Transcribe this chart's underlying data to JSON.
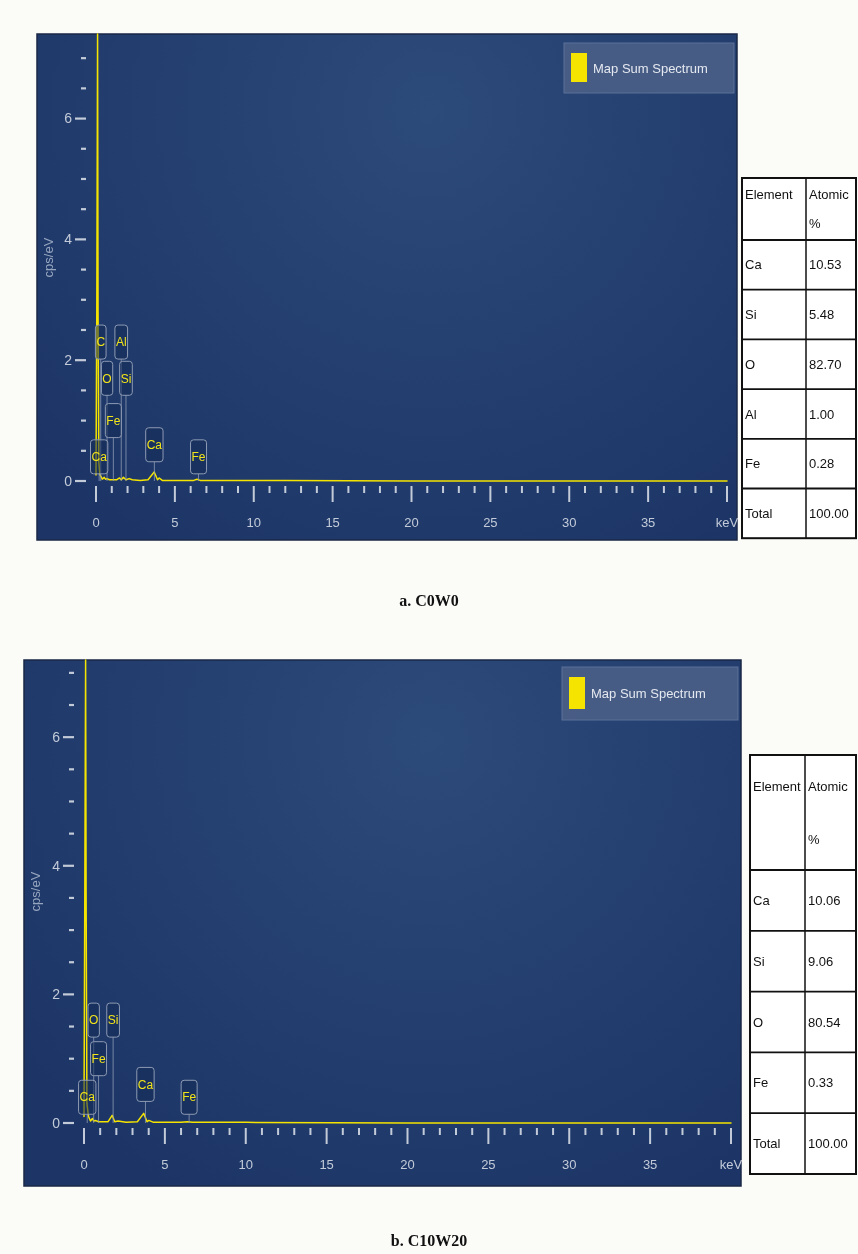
{
  "chart_data": [
    {
      "type": "line",
      "title": "a. C0W0",
      "ylabel": "cps/eV",
      "xlim": [
        0,
        40
      ],
      "ylim": [
        0,
        7.4
      ],
      "xticks": [
        0,
        {
          "value": 1,
          "label": null
        },
        {
          "value": 2,
          "label": null
        },
        {
          "value": 3,
          "label": null
        },
        {
          "value": 4,
          "label": null
        },
        5,
        {
          "value": 6,
          "label": null
        },
        {
          "value": 7,
          "label": null
        },
        {
          "value": 8,
          "label": null
        },
        {
          "value": 9,
          "label": null
        },
        10,
        {
          "value": 11,
          "label": null
        },
        {
          "value": 12,
          "label": null
        },
        {
          "value": 13,
          "label": null
        },
        {
          "value": 14,
          "label": null
        },
        15,
        {
          "value": 16,
          "label": null
        },
        {
          "value": 17,
          "label": null
        },
        {
          "value": 18,
          "label": null
        },
        {
          "value": 19,
          "label": null
        },
        20,
        {
          "value": 21,
          "label": null
        },
        {
          "value": 22,
          "label": null
        },
        {
          "value": 23,
          "label": null
        },
        {
          "value": 24,
          "label": null
        },
        25,
        {
          "value": 26,
          "label": null
        },
        {
          "value": 27,
          "label": null
        },
        {
          "value": 28,
          "label": null
        },
        {
          "value": 29,
          "label": null
        },
        30,
        {
          "value": 31,
          "label": null
        },
        {
          "value": 32,
          "label": null
        },
        {
          "value": 33,
          "label": null
        },
        {
          "value": 34,
          "label": null
        },
        35,
        {
          "value": 36,
          "label": null
        },
        {
          "value": 37,
          "label": null
        },
        {
          "value": 38,
          "label": null
        },
        {
          "value": 39,
          "label": null
        },
        {
          "value": 40,
          "label": "keV"
        }
      ],
      "yticks": [
        0,
        {
          "value": 0.5,
          "label": null
        },
        {
          "value": 1,
          "label": null
        },
        {
          "value": 1.5,
          "label": null
        },
        2,
        {
          "value": 2.5,
          "label": null
        },
        {
          "value": 3,
          "label": null
        },
        {
          "value": 3.5,
          "label": null
        },
        4,
        {
          "value": 4.5,
          "label": null
        },
        {
          "value": 5,
          "label": null
        },
        {
          "value": 5.5,
          "label": null
        },
        6,
        {
          "value": 6.5,
          "label": null
        },
        {
          "value": 7,
          "label": null
        }
      ],
      "legend": "top right",
      "series": [
        {
          "name": "Map Sum Spectrum",
          "color": "#f5e400",
          "x": [
            0,
            0.05,
            0.1,
            0.13,
            0.18,
            0.25,
            0.3,
            0.4,
            0.52,
            0.6,
            0.7,
            0.85,
            1.0,
            1.3,
            1.49,
            1.6,
            1.74,
            1.9,
            2.1,
            2.3,
            2.8,
            3.3,
            3.69,
            3.9,
            4.01,
            4.2,
            5,
            6.2,
            6.4,
            6.6,
            8,
            12,
            20,
            30,
            40
          ],
          "values": [
            0.1,
            2.8,
            7.4,
            2.8,
            0.3,
            0.1,
            0.08,
            0.03,
            0.06,
            0.03,
            0.04,
            0.02,
            0.02,
            0.02,
            0.05,
            0.02,
            0.06,
            0.02,
            0.04,
            0.02,
            0.01,
            0.02,
            0.15,
            0.02,
            0.05,
            0.01,
            0.01,
            0.01,
            0.03,
            0.01,
            0.01,
            0.01,
            0,
            0,
            0
          ]
        }
      ],
      "annotations": [
        {
          "text": "C",
          "x": 0.3,
          "y": 2.3
        },
        {
          "text": "Al",
          "x": 1.6,
          "y": 2.3
        },
        {
          "text": "O",
          "x": 0.7,
          "y": 1.7
        },
        {
          "text": "Si",
          "x": 1.9,
          "y": 1.7
        },
        {
          "text": "Fe",
          "x": 1.1,
          "y": 1.0
        },
        {
          "text": "Ca",
          "x": 0.2,
          "y": 0.4
        },
        {
          "text": "Ca",
          "x": 3.7,
          "y": 0.6
        },
        {
          "text": "Fe",
          "x": 6.5,
          "y": 0.4
        }
      ]
    },
    {
      "type": "other",
      "xlabel": "Element",
      "ylabel": "Atomic %",
      "categories": [
        "Ca",
        "Si",
        "O",
        "Al",
        "Fe",
        "Total"
      ],
      "value_labels": [
        "10.53",
        "5.48",
        "82.70",
        "1.00",
        "0.28",
        "100.00"
      ]
    },
    {
      "type": "line",
      "title": "b. C10W20",
      "ylabel": "cps/eV",
      "xlim": [
        0,
        40
      ],
      "ylim": [
        0,
        7.2
      ],
      "xticks": [
        0,
        {
          "value": 1,
          "label": null
        },
        {
          "value": 2,
          "label": null
        },
        {
          "value": 3,
          "label": null
        },
        {
          "value": 4,
          "label": null
        },
        5,
        {
          "value": 6,
          "label": null
        },
        {
          "value": 7,
          "label": null
        },
        {
          "value": 8,
          "label": null
        },
        {
          "value": 9,
          "label": null
        },
        10,
        {
          "value": 11,
          "label": null
        },
        {
          "value": 12,
          "label": null
        },
        {
          "value": 13,
          "label": null
        },
        {
          "value": 14,
          "label": null
        },
        15,
        {
          "value": 16,
          "label": null
        },
        {
          "value": 17,
          "label": null
        },
        {
          "value": 18,
          "label": null
        },
        {
          "value": 19,
          "label": null
        },
        20,
        {
          "value": 21,
          "label": null
        },
        {
          "value": 22,
          "label": null
        },
        {
          "value": 23,
          "label": null
        },
        {
          "value": 24,
          "label": null
        },
        25,
        {
          "value": 26,
          "label": null
        },
        {
          "value": 27,
          "label": null
        },
        {
          "value": 28,
          "label": null
        },
        {
          "value": 29,
          "label": null
        },
        30,
        {
          "value": 31,
          "label": null
        },
        {
          "value": 32,
          "label": null
        },
        {
          "value": 33,
          "label": null
        },
        {
          "value": 34,
          "label": null
        },
        35,
        {
          "value": 36,
          "label": null
        },
        {
          "value": 37,
          "label": null
        },
        {
          "value": 38,
          "label": null
        },
        {
          "value": 39,
          "label": null
        },
        {
          "value": 40,
          "label": "keV"
        }
      ],
      "yticks": [
        0,
        {
          "value": 0.5,
          "label": null
        },
        {
          "value": 1,
          "label": null
        },
        {
          "value": 1.5,
          "label": null
        },
        2,
        {
          "value": 2.5,
          "label": null
        },
        {
          "value": 3,
          "label": null
        },
        {
          "value": 3.5,
          "label": null
        },
        4,
        {
          "value": 4.5,
          "label": null
        },
        {
          "value": 5,
          "label": null
        },
        {
          "value": 5.5,
          "label": null
        },
        6,
        {
          "value": 6.5,
          "label": null
        },
        {
          "value": 7,
          "label": null
        }
      ],
      "legend": "top right",
      "series": [
        {
          "name": "Map Sum Spectrum",
          "color": "#f5e400",
          "x": [
            0,
            0.05,
            0.1,
            0.13,
            0.18,
            0.28,
            0.4,
            0.52,
            0.6,
            0.7,
            0.9,
            1.2,
            1.49,
            1.74,
            1.9,
            2.1,
            2.6,
            3.3,
            3.69,
            3.9,
            4.01,
            4.3,
            6.0,
            6.4,
            6.7,
            10,
            20,
            30,
            40
          ],
          "values": [
            0.1,
            3.6,
            7.2,
            3.6,
            0.3,
            0.1,
            0.03,
            0.07,
            0.03,
            0.04,
            0.02,
            0.02,
            0.02,
            0.12,
            0.02,
            0.03,
            0.01,
            0.02,
            0.15,
            0.02,
            0.04,
            0.01,
            0.01,
            0.02,
            0.01,
            0.01,
            0,
            0,
            0
          ]
        }
      ],
      "annotations": [
        {
          "text": "O",
          "x": 0.6,
          "y": 1.6
        },
        {
          "text": "Si",
          "x": 1.8,
          "y": 1.6
        },
        {
          "text": "Fe",
          "x": 0.9,
          "y": 1.0
        },
        {
          "text": "Ca",
          "x": 0.2,
          "y": 0.4
        },
        {
          "text": "Ca",
          "x": 3.8,
          "y": 0.6
        },
        {
          "text": "Fe",
          "x": 6.5,
          "y": 0.4
        }
      ]
    },
    {
      "type": "other",
      "xlabel": "Element",
      "ylabel": "Atomic %",
      "categories": [
        "Ca",
        "Si",
        "O",
        "Fe",
        "Total"
      ],
      "value_labels": [
        "10.06",
        "9.06",
        "80.54",
        "0.33",
        "100.00"
      ]
    }
  ]
}
